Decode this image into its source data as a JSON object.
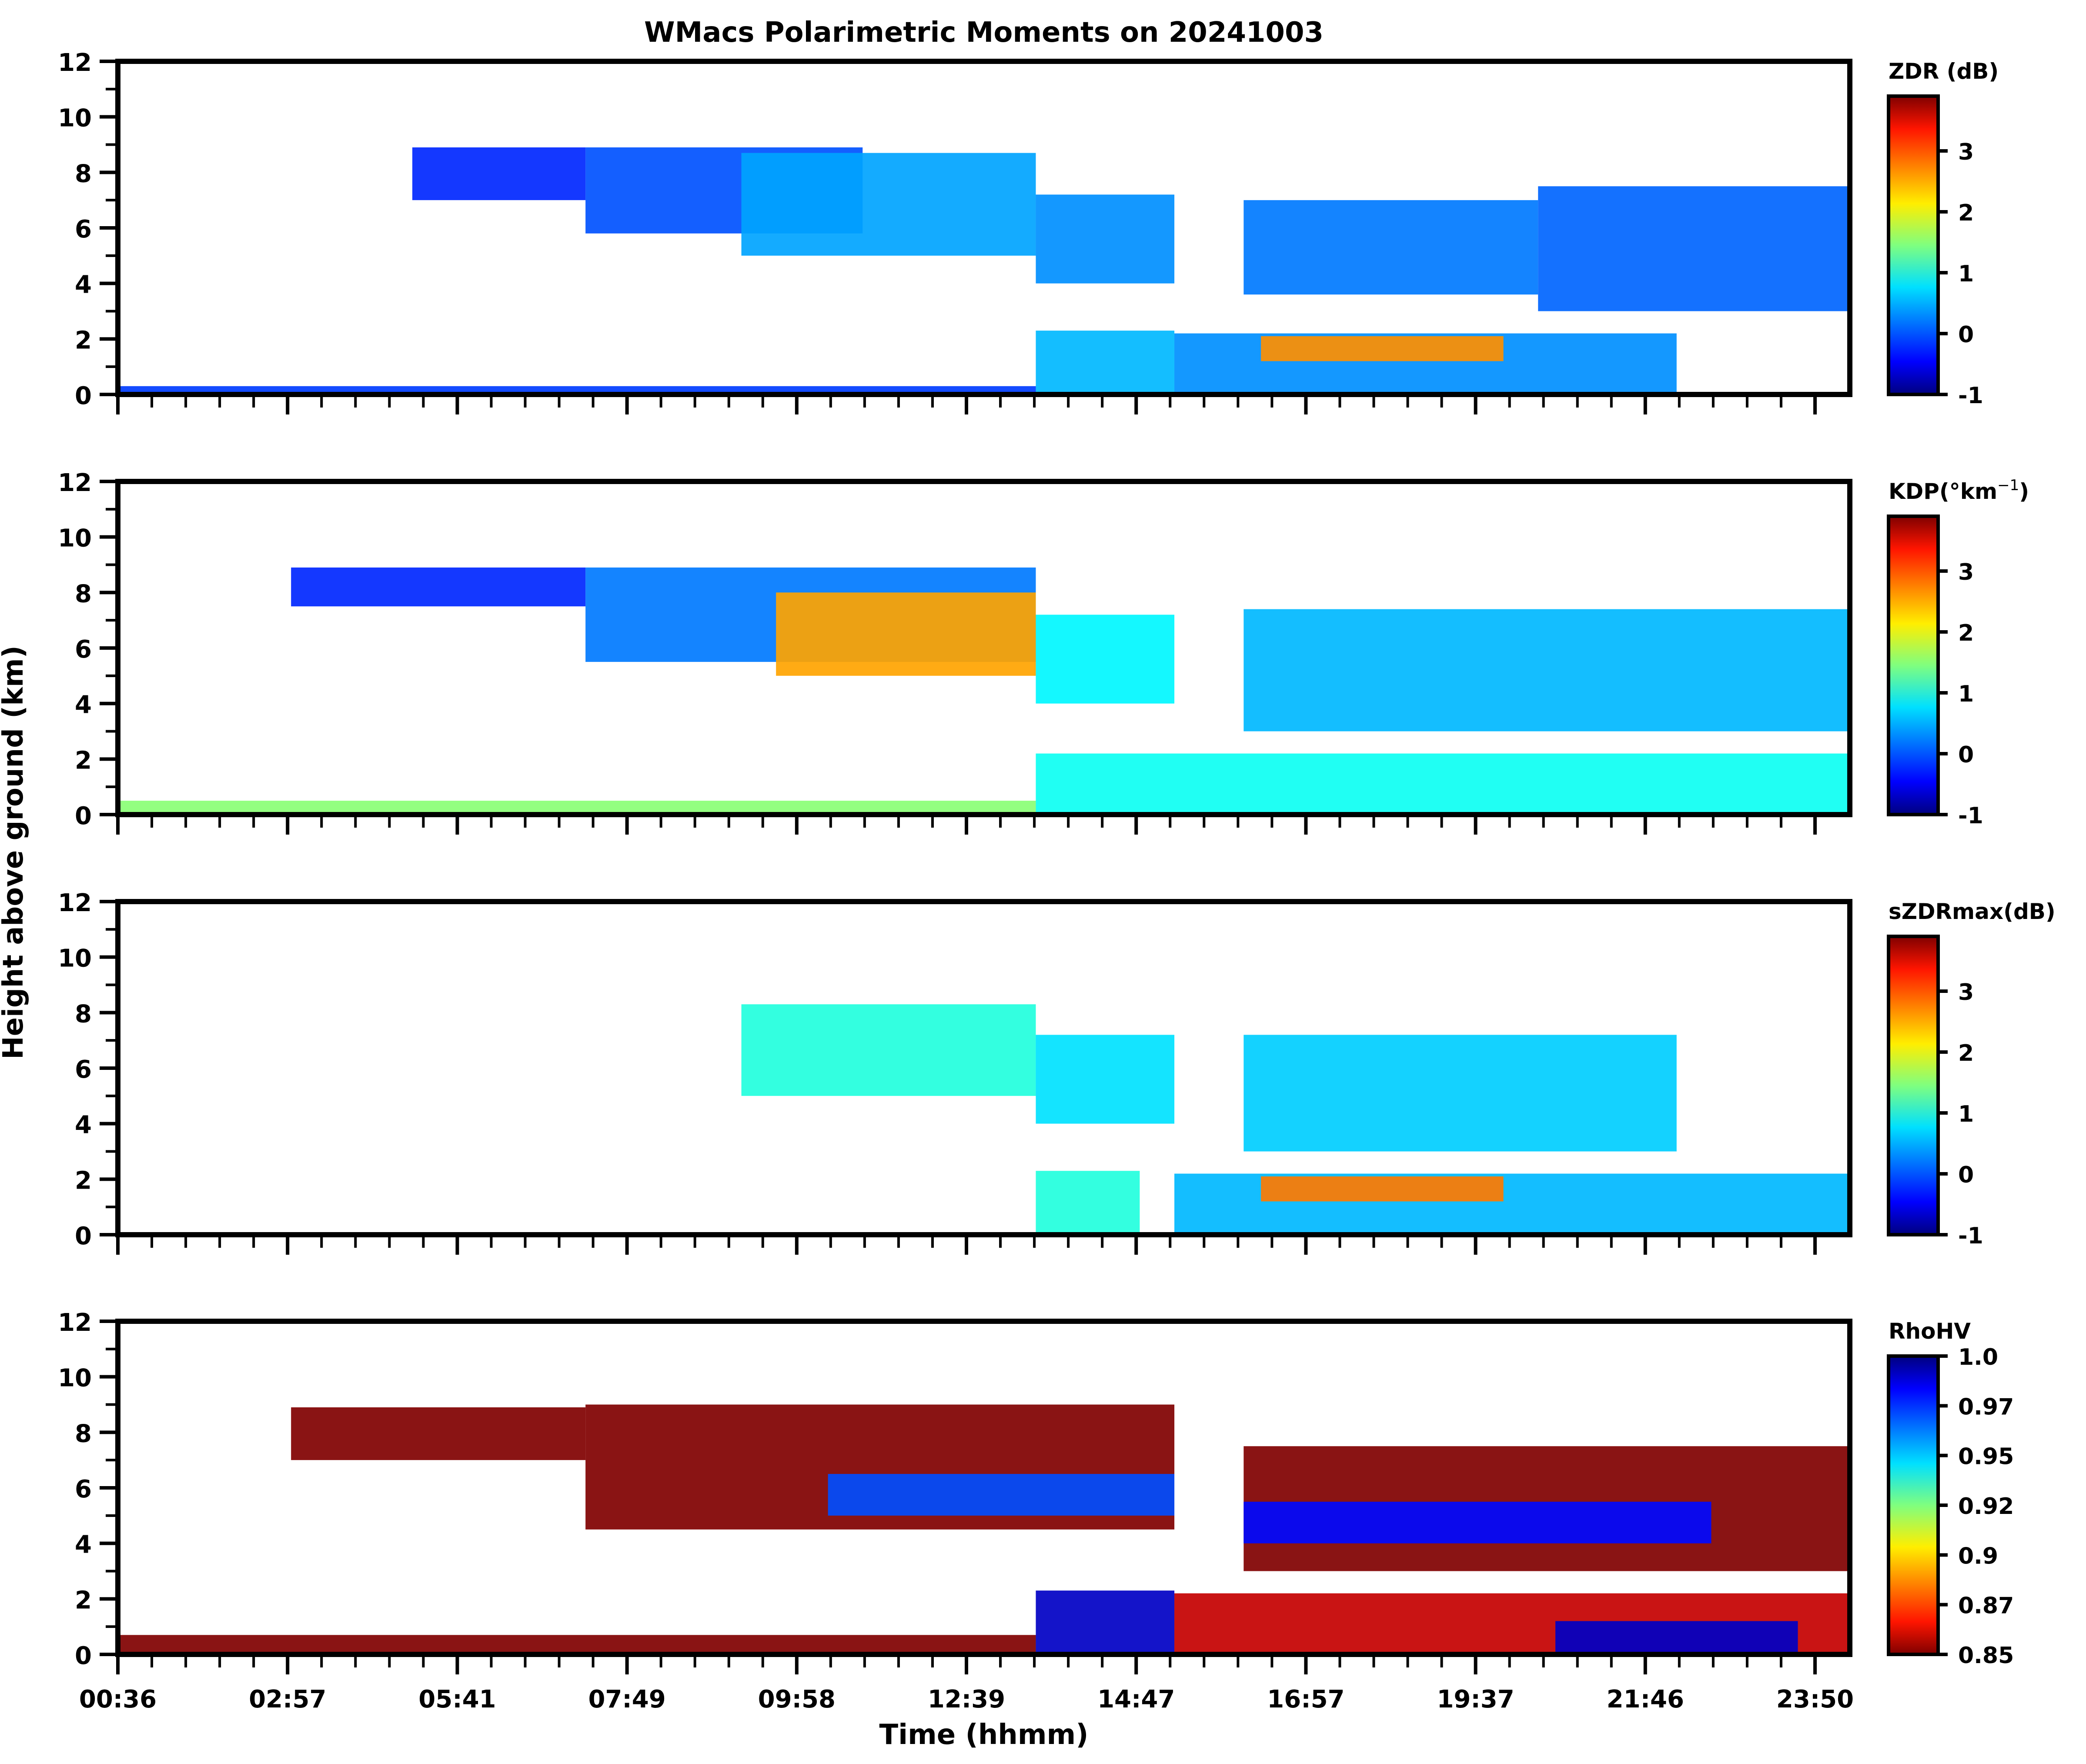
{
  "chart_data": {
    "type": "heatmap",
    "title": "WMacs Polarimetric Moments on 20241003",
    "xlabel": "Time (hhmm)",
    "ylabel": "Height above ground (km)",
    "x_tick_labels": [
      "00:36",
      "02:57",
      "05:41",
      "07:49",
      "09:58",
      "12:39",
      "14:47",
      "16:57",
      "19:37",
      "21:46",
      "23:50"
    ],
    "y_ticks": [
      0,
      2,
      4,
      6,
      8,
      10,
      12
    ],
    "ylim": [
      0,
      12
    ],
    "panels": [
      {
        "name": "ZDR",
        "colorbar_label": "ZDR (dB)",
        "colorbar_ticks": [
          "-1",
          "0",
          "1",
          "2",
          "3"
        ],
        "clim": [
          -1,
          3.9
        ],
        "colormap": "jet",
        "echoes": [
          {
            "t0": 0.17,
            "t1": 0.27,
            "h0": 7.0,
            "h1": 8.9,
            "v": -0.2
          },
          {
            "t0": 0.27,
            "t1": 0.43,
            "h0": 5.8,
            "h1": 8.9,
            "v": 0.0
          },
          {
            "t0": 0.36,
            "t1": 0.53,
            "h0": 5.0,
            "h1": 8.7,
            "v": 0.4
          },
          {
            "t0": 0.53,
            "t1": 0.61,
            "h0": 4.0,
            "h1": 7.2,
            "v": 0.3
          },
          {
            "t0": 0.65,
            "t1": 0.82,
            "h0": 3.6,
            "h1": 7.0,
            "v": 0.2
          },
          {
            "t0": 0.82,
            "t1": 1.0,
            "h0": 3.0,
            "h1": 7.5,
            "v": 0.1
          },
          {
            "t0": 0.53,
            "t1": 0.61,
            "h0": 0.0,
            "h1": 2.3,
            "v": 0.5
          },
          {
            "t0": 0.61,
            "t1": 0.9,
            "h0": 0.0,
            "h1": 2.2,
            "v": 0.3
          },
          {
            "t0": 0.66,
            "t1": 0.8,
            "h0": 1.2,
            "h1": 2.1,
            "v": 2.6
          },
          {
            "t0": 0.0,
            "t1": 0.53,
            "h0": 0.0,
            "h1": 0.3,
            "v": -0.1
          }
        ]
      },
      {
        "name": "KDP",
        "colorbar_label": "KDP(°km",
        "colorbar_label_sup": "−1",
        "colorbar_label_end": ")",
        "colorbar_ticks": [
          "-1",
          "0",
          "1",
          "2",
          "3"
        ],
        "clim": [
          -1,
          3.9
        ],
        "colormap": "jet",
        "echoes": [
          {
            "t0": 0.1,
            "t1": 0.27,
            "h0": 7.5,
            "h1": 8.9,
            "v": -0.2
          },
          {
            "t0": 0.27,
            "t1": 0.53,
            "h0": 5.5,
            "h1": 8.9,
            "v": 0.2
          },
          {
            "t0": 0.38,
            "t1": 0.53,
            "h0": 5.0,
            "h1": 8.0,
            "v": 2.5
          },
          {
            "t0": 0.53,
            "t1": 0.61,
            "h0": 4.0,
            "h1": 7.2,
            "v": 0.8
          },
          {
            "t0": 0.65,
            "t1": 1.0,
            "h0": 3.0,
            "h1": 7.4,
            "v": 0.5
          },
          {
            "t0": 0.53,
            "t1": 1.0,
            "h0": 0.0,
            "h1": 2.2,
            "v": 0.9
          },
          {
            "t0": 0.0,
            "t1": 0.53,
            "h0": 0.0,
            "h1": 0.5,
            "v": 1.5
          }
        ]
      },
      {
        "name": "sZDRmax",
        "colorbar_label": "sZDRmax(dB)",
        "colorbar_ticks": [
          "-1",
          "0",
          "1",
          "2",
          "3"
        ],
        "clim": [
          -1,
          3.9
        ],
        "colormap": "jet",
        "echoes": [
          {
            "t0": 0.36,
            "t1": 0.53,
            "h0": 5.0,
            "h1": 8.3,
            "v": 1.0
          },
          {
            "t0": 0.53,
            "t1": 0.61,
            "h0": 4.0,
            "h1": 7.2,
            "v": 0.7
          },
          {
            "t0": 0.65,
            "t1": 0.9,
            "h0": 3.0,
            "h1": 7.2,
            "v": 0.6
          },
          {
            "t0": 0.53,
            "t1": 0.59,
            "h0": 0.0,
            "h1": 2.3,
            "v": 1.0
          },
          {
            "t0": 0.61,
            "t1": 1.0,
            "h0": 0.0,
            "h1": 2.2,
            "v": 0.5
          },
          {
            "t0": 0.66,
            "t1": 0.8,
            "h0": 1.2,
            "h1": 2.1,
            "v": 2.7
          }
        ]
      },
      {
        "name": "RhoHV",
        "colorbar_label": "RhoHV",
        "colorbar_ticks": [
          "0.85",
          "0.87",
          "0.9",
          "0.92",
          "0.95",
          "0.97",
          "1.0"
        ],
        "clim": [
          0.85,
          1.0
        ],
        "colormap": "jet_r",
        "echoes": [
          {
            "t0": 0.1,
            "t1": 0.27,
            "h0": 7.0,
            "h1": 8.9,
            "v": 0.85
          },
          {
            "t0": 0.27,
            "t1": 0.61,
            "h0": 4.5,
            "h1": 9.0,
            "v": 0.85
          },
          {
            "t0": 0.41,
            "t1": 0.61,
            "h0": 5.0,
            "h1": 6.5,
            "v": 0.97
          },
          {
            "t0": 0.65,
            "t1": 1.0,
            "h0": 3.0,
            "h1": 7.5,
            "v": 0.85
          },
          {
            "t0": 0.65,
            "t1": 0.92,
            "h0": 4.0,
            "h1": 5.5,
            "v": 0.98
          },
          {
            "t0": 0.53,
            "t1": 0.61,
            "h0": 0.0,
            "h1": 2.3,
            "v": 0.99
          },
          {
            "t0": 0.61,
            "t1": 1.0,
            "h0": 0.0,
            "h1": 2.2,
            "v": 0.86
          },
          {
            "t0": 0.83,
            "t1": 0.97,
            "h0": 0.0,
            "h1": 1.2,
            "v": 0.99
          },
          {
            "t0": 0.0,
            "t1": 0.53,
            "h0": 0.0,
            "h1": 0.7,
            "v": 0.85
          }
        ]
      }
    ]
  }
}
